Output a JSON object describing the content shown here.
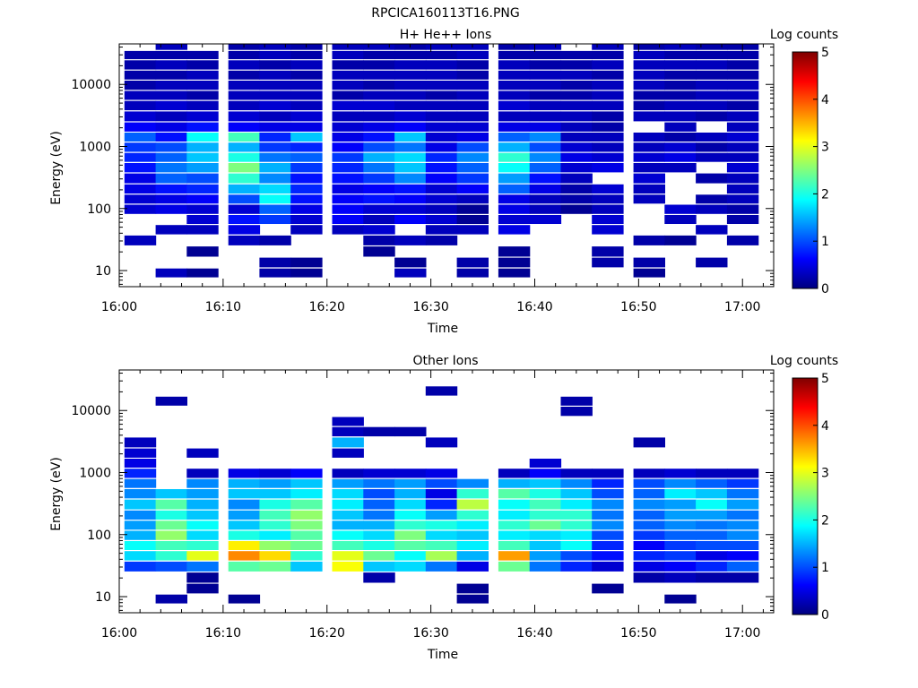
{
  "figure": {
    "title": "RPCICA160113T16.PNG"
  },
  "colorscale": {
    "stops": [
      "#00007f",
      "#0000ff",
      "#007fff",
      "#00ffff",
      "#7fff7f",
      "#ffff00",
      "#ff7f00",
      "#ff0000",
      "#7f0000"
    ],
    "range": [
      0,
      5
    ]
  },
  "chart_data": [
    {
      "type": "heatmap",
      "title": "H+ He++ Ions",
      "xlabel": "Time",
      "ylabel": "Energy (eV)",
      "colorbar_label": "Log counts",
      "colorbar_ticks": [
        "0",
        "1",
        "2",
        "3",
        "4",
        "5"
      ],
      "xticks": [
        "16:00",
        "16:10",
        "16:20",
        "16:30",
        "16:40",
        "16:50",
        "17:00"
      ],
      "xlim_minutes_after_1600": [
        0,
        63
      ],
      "yticks": [
        "10",
        "100",
        "1000",
        "10000"
      ],
      "ylim": [
        5.5,
        45000
      ],
      "yscale": "log",
      "time_bins": [
        "16:02",
        "16:05",
        "16:08",
        "16:12",
        "16:15",
        "16:18",
        "16:22",
        "16:25",
        "16:28",
        "16:31",
        "16:34",
        "16:38",
        "16:41",
        "16:44",
        "16:47",
        "16:51",
        "16:54",
        "16:57",
        "17:00"
      ],
      "energy_bands_eV": [
        9,
        13,
        20,
        30,
        45,
        65,
        95,
        140,
        200,
        300,
        450,
        650,
        950,
        1400,
        2000,
        3000,
        4500,
        6500,
        9500,
        14000,
        20000,
        30000,
        40000
      ],
      "log_counts_grid": [
        [
          null,
          0.3,
          0.1,
          null,
          0.2,
          0.1,
          null,
          null,
          0.3,
          null,
          0.2,
          0.1,
          null,
          null,
          null,
          0.1,
          null,
          null,
          null
        ],
        [
          null,
          null,
          null,
          null,
          0.2,
          0.1,
          null,
          null,
          0.1,
          null,
          0.2,
          0.1,
          null,
          null,
          0.2,
          0.2,
          null,
          0.2,
          null
        ],
        [
          null,
          null,
          0.1,
          null,
          null,
          null,
          null,
          0.1,
          null,
          null,
          null,
          0.1,
          null,
          null,
          0.2,
          null,
          null,
          null,
          null
        ],
        [
          0.3,
          null,
          null,
          0.3,
          0.2,
          null,
          null,
          0.2,
          0.3,
          0.2,
          null,
          null,
          null,
          null,
          null,
          0.2,
          0.1,
          null,
          0.2
        ],
        [
          null,
          0.3,
          0.3,
          0.5,
          null,
          0.3,
          0.3,
          0.4,
          null,
          0.3,
          0.3,
          0.5,
          null,
          null,
          0.4,
          null,
          null,
          0.3,
          null
        ],
        [
          null,
          null,
          0.4,
          0.7,
          0.9,
          0.4,
          0.6,
          0.3,
          0.6,
          0.4,
          0.1,
          0.4,
          0.4,
          null,
          0.4,
          null,
          0.3,
          null,
          0.2
        ],
        [
          0.4,
          0.5,
          0.4,
          0.4,
          1.1,
          0.5,
          0.6,
          0.4,
          0.4,
          0.3,
          0.1,
          0.5,
          0.3,
          0.1,
          0.3,
          null,
          0.4,
          0.3,
          0.2
        ],
        [
          0.4,
          0.5,
          0.6,
          1.0,
          1.9,
          0.7,
          0.6,
          0.7,
          0.6,
          0.4,
          0.3,
          0.5,
          0.3,
          0.2,
          0.3,
          0.3,
          null,
          0.2,
          0.3
        ],
        [
          0.5,
          0.7,
          0.8,
          1.5,
          1.7,
          0.8,
          0.5,
          0.6,
          0.7,
          0.4,
          0.6,
          1.1,
          0.5,
          0.2,
          0.4,
          0.3,
          null,
          null,
          0.3
        ],
        [
          0.5,
          1.1,
          1.0,
          2.1,
          1.3,
          0.7,
          0.7,
          0.9,
          1.3,
          0.6,
          0.9,
          1.4,
          0.7,
          0.3,
          null,
          0.4,
          null,
          0.2,
          0.3
        ],
        [
          0.7,
          1.2,
          1.4,
          2.5,
          1.5,
          0.9,
          0.8,
          1.2,
          1.6,
          0.7,
          1.1,
          1.9,
          1.1,
          0.4,
          0.5,
          0.3,
          0.3,
          null,
          0.4
        ],
        [
          0.8,
          1.1,
          1.6,
          2.0,
          1.2,
          1.1,
          0.9,
          1.5,
          1.7,
          0.8,
          1.3,
          2.1,
          1.3,
          0.5,
          0.4,
          0.4,
          0.5,
          0.3,
          0.3
        ],
        [
          0.9,
          1.0,
          1.5,
          1.5,
          0.9,
          0.8,
          0.6,
          1.0,
          1.2,
          0.5,
          1.0,
          1.5,
          1.0,
          0.4,
          0.3,
          0.3,
          0.4,
          0.2,
          0.3
        ],
        [
          1.1,
          0.7,
          1.9,
          2.2,
          0.8,
          1.6,
          0.5,
          0.7,
          1.6,
          0.4,
          0.5,
          1.1,
          1.3,
          0.3,
          0.3,
          0.3,
          0.2,
          0.3,
          0.4
        ],
        [
          0.6,
          0.5,
          0.7,
          0.6,
          0.5,
          0.5,
          0.4,
          0.5,
          0.6,
          0.4,
          0.4,
          0.5,
          0.5,
          0.3,
          0.2,
          null,
          0.3,
          null,
          0.3
        ],
        [
          0.4,
          0.3,
          0.4,
          0.4,
          0.3,
          0.4,
          0.3,
          0.3,
          0.4,
          0.3,
          0.3,
          0.3,
          0.3,
          0.3,
          0.2,
          0.3,
          0.3,
          0.2,
          0.3
        ],
        [
          0.3,
          0.4,
          0.3,
          0.3,
          0.4,
          0.3,
          0.4,
          0.4,
          0.3,
          0.3,
          0.3,
          0.4,
          0.3,
          0.3,
          0.3,
          0.2,
          0.3,
          0.3,
          0.2
        ],
        [
          0.3,
          0.3,
          0.2,
          0.3,
          0.3,
          0.3,
          0.2,
          0.3,
          0.3,
          0.2,
          0.3,
          0.3,
          0.2,
          0.2,
          0.3,
          0.2,
          0.2,
          0.3,
          0.3
        ],
        [
          0.2,
          0.3,
          0.3,
          0.3,
          0.3,
          0.3,
          0.3,
          0.2,
          0.3,
          0.3,
          0.3,
          0.3,
          0.3,
          0.2,
          0.3,
          0.3,
          0.2,
          0.3,
          0.3
        ],
        [
          0.2,
          0.2,
          0.3,
          0.2,
          0.3,
          0.2,
          0.3,
          0.3,
          0.3,
          0.3,
          0.2,
          0.3,
          0.3,
          0.3,
          0.2,
          0.3,
          0.2,
          0.2,
          0.2
        ],
        [
          0.2,
          0.3,
          0.2,
          0.3,
          0.2,
          0.3,
          0.2,
          0.2,
          0.3,
          0.3,
          0.2,
          0.3,
          0.2,
          0.2,
          0.3,
          0.3,
          0.3,
          0.3,
          0.2
        ],
        [
          0.2,
          0.2,
          0.2,
          0.2,
          0.3,
          0.2,
          0.3,
          0.2,
          0.2,
          0.2,
          0.3,
          0.2,
          0.2,
          0.2,
          0.2,
          0.3,
          0.2,
          0.2,
          0.2
        ],
        [
          null,
          0.3,
          null,
          0.2,
          0.3,
          0.2,
          0.3,
          0.3,
          0.2,
          0.3,
          0.3,
          0.2,
          0.3,
          null,
          0.3,
          0.2,
          0.3,
          0.2,
          0.2
        ]
      ]
    },
    {
      "type": "heatmap",
      "title": "Other Ions",
      "xlabel": "Time",
      "ylabel": "Energy (eV)",
      "colorbar_label": "Log counts",
      "colorbar_ticks": [
        "0",
        "1",
        "2",
        "3",
        "4",
        "5"
      ],
      "xticks": [
        "16:00",
        "16:10",
        "16:20",
        "16:30",
        "16:40",
        "16:50",
        "17:00"
      ],
      "xlim_minutes_after_1600": [
        0,
        63
      ],
      "yticks": [
        "10",
        "100",
        "1000",
        "10000"
      ],
      "ylim": [
        5.5,
        45000
      ],
      "yscale": "log",
      "time_bins": [
        "16:02",
        "16:05",
        "16:08",
        "16:12",
        "16:15",
        "16:18",
        "16:22",
        "16:25",
        "16:28",
        "16:31",
        "16:34",
        "16:38",
        "16:41",
        "16:44",
        "16:47",
        "16:51",
        "16:54",
        "16:57",
        "17:00"
      ],
      "energy_bands_eV": [
        9,
        13,
        20,
        30,
        45,
        65,
        95,
        140,
        200,
        300,
        450,
        650,
        950,
        1400,
        2000,
        3000,
        4500,
        6500,
        9500,
        14000,
        20000,
        30000,
        40000
      ],
      "log_counts_grid": [
        [
          null,
          0.2,
          null,
          0.1,
          null,
          null,
          null,
          null,
          null,
          null,
          0.1,
          null,
          null,
          null,
          null,
          null,
          0.1,
          null,
          null
        ],
        [
          null,
          null,
          0.1,
          null,
          null,
          null,
          null,
          null,
          null,
          null,
          0.1,
          null,
          null,
          null,
          0.1,
          null,
          null,
          null,
          null
        ],
        [
          null,
          null,
          0.1,
          null,
          null,
          null,
          null,
          0.2,
          null,
          null,
          null,
          null,
          null,
          null,
          null,
          0.2,
          0.3,
          0.2,
          0.2
        ],
        [
          0.9,
          1.0,
          1.2,
          2.3,
          2.4,
          1.6,
          3.1,
          1.6,
          1.7,
          1.2,
          0.5,
          2.4,
          1.2,
          0.8,
          0.4,
          0.5,
          0.6,
          0.8,
          1.1
        ],
        [
          1.7,
          2.1,
          3.0,
          3.7,
          3.3,
          2.1,
          3.0,
          2.4,
          1.9,
          2.7,
          1.5,
          3.6,
          1.4,
          1.0,
          0.7,
          0.8,
          0.9,
          0.5,
          0.6
        ],
        [
          1.9,
          2.2,
          2.1,
          3.2,
          2.6,
          2.4,
          2.2,
          2.0,
          2.3,
          2.2,
          1.8,
          2.2,
          1.6,
          1.9,
          0.8,
          0.6,
          0.9,
          1.0,
          1.0
        ],
        [
          1.5,
          2.6,
          1.7,
          2.0,
          1.8,
          2.3,
          1.9,
          1.7,
          2.5,
          1.7,
          1.6,
          1.8,
          1.7,
          1.8,
          1.0,
          0.9,
          1.1,
          1.1,
          1.3
        ],
        [
          1.4,
          2.4,
          1.9,
          1.6,
          2.1,
          2.5,
          1.5,
          1.5,
          2.1,
          2.0,
          1.8,
          2.1,
          2.4,
          2.1,
          1.3,
          1.1,
          1.3,
          1.2,
          1.3
        ],
        [
          1.3,
          2.0,
          1.6,
          1.4,
          2.2,
          2.6,
          1.6,
          1.2,
          1.9,
          1.4,
          2.1,
          1.8,
          2.1,
          2.1,
          1.2,
          1.1,
          1.4,
          1.4,
          1.2
        ],
        [
          1.6,
          2.3,
          1.5,
          1.3,
          2.0,
          2.3,
          1.8,
          1.1,
          1.7,
          0.8,
          2.8,
          1.9,
          2.2,
          1.8,
          1.3,
          1.3,
          1.4,
          1.9,
          1.4
        ],
        [
          1.3,
          1.6,
          1.4,
          1.6,
          1.6,
          1.8,
          1.7,
          1.0,
          1.5,
          0.5,
          2.1,
          2.3,
          2.0,
          1.6,
          1.0,
          1.1,
          1.8,
          1.6,
          1.2
        ],
        [
          1.2,
          null,
          1.3,
          1.5,
          1.4,
          1.6,
          1.4,
          1.2,
          1.4,
          1.0,
          1.3,
          1.5,
          1.6,
          1.3,
          0.8,
          1.0,
          1.3,
          1.1,
          0.9
        ],
        [
          0.8,
          null,
          0.3,
          0.5,
          0.4,
          0.6,
          0.3,
          0.4,
          0.4,
          0.5,
          null,
          0.3,
          0.6,
          0.3,
          0.3,
          0.3,
          0.4,
          0.3,
          0.3
        ],
        [
          0.5,
          null,
          null,
          null,
          null,
          null,
          null,
          null,
          null,
          null,
          null,
          null,
          0.4,
          null,
          null,
          null,
          null,
          null,
          null
        ],
        [
          0.4,
          null,
          0.3,
          null,
          null,
          null,
          0.3,
          null,
          null,
          null,
          null,
          null,
          null,
          null,
          null,
          null,
          null,
          null,
          null
        ],
        [
          0.3,
          null,
          null,
          null,
          null,
          null,
          1.5,
          null,
          null,
          0.3,
          null,
          null,
          null,
          null,
          null,
          0.2,
          null,
          null,
          null
        ],
        [
          null,
          null,
          null,
          null,
          null,
          null,
          0.3,
          0.2,
          0.2,
          null,
          null,
          null,
          null,
          null,
          null,
          null,
          null,
          null,
          null
        ],
        [
          null,
          null,
          null,
          null,
          null,
          null,
          0.3,
          null,
          null,
          null,
          null,
          null,
          null,
          null,
          null,
          null,
          null,
          null,
          null
        ],
        [
          null,
          null,
          null,
          null,
          null,
          null,
          null,
          null,
          null,
          null,
          null,
          null,
          null,
          0.2,
          null,
          null,
          null,
          null,
          null
        ],
        [
          null,
          0.2,
          null,
          null,
          null,
          null,
          null,
          null,
          null,
          null,
          null,
          null,
          null,
          0.2,
          null,
          null,
          null,
          null,
          null
        ],
        [
          null,
          null,
          null,
          null,
          null,
          null,
          null,
          null,
          null,
          0.2,
          null,
          null,
          null,
          null,
          null,
          null,
          null,
          null,
          null
        ],
        [
          null,
          null,
          null,
          null,
          null,
          null,
          null,
          null,
          null,
          null,
          null,
          null,
          null,
          null,
          null,
          null,
          null,
          null,
          null
        ],
        [
          null,
          null,
          null,
          null,
          null,
          null,
          null,
          null,
          null,
          null,
          null,
          null,
          null,
          null,
          null,
          null,
          null,
          null,
          null
        ]
      ]
    }
  ]
}
